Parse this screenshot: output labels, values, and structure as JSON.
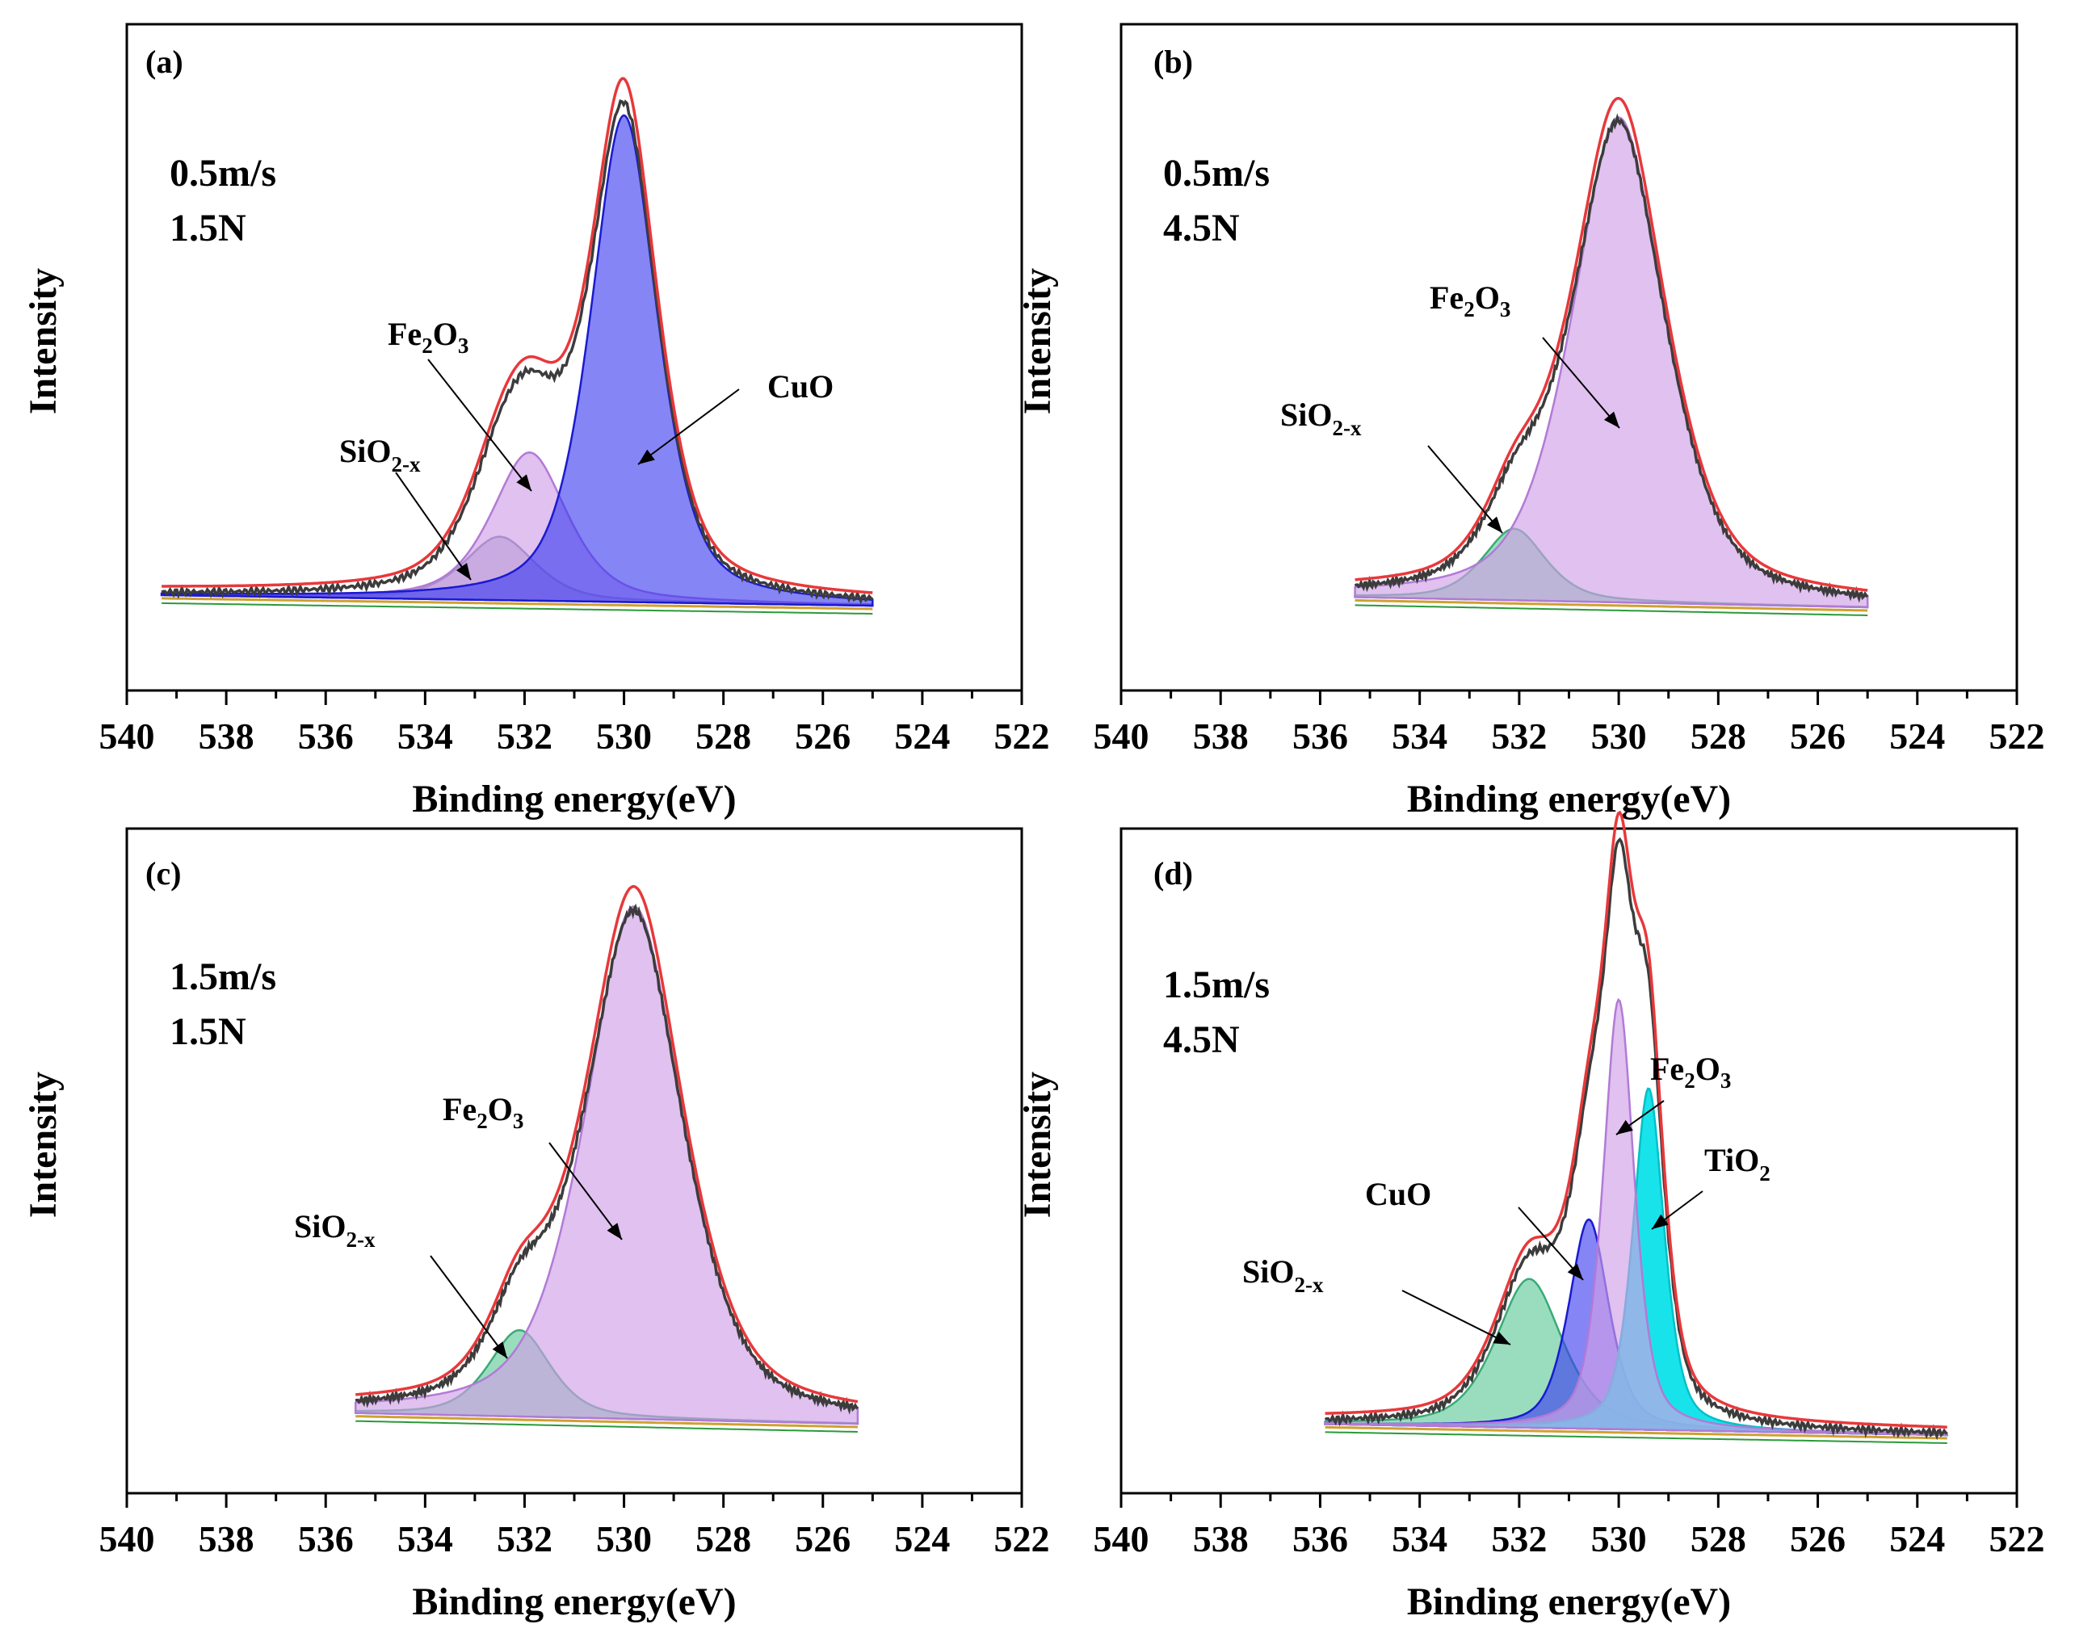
{
  "figure": {
    "panels": [
      {
        "label": "(a)",
        "condition": [
          "0.5m/s",
          "1.5N"
        ],
        "xlabel": "Binding energy(eV)",
        "ylabel": "Intensity"
      },
      {
        "label": "(b)",
        "condition": [
          "0.5m/s",
          "4.5N"
        ],
        "xlabel": "Binding energy(eV)",
        "ylabel": "Intensity"
      },
      {
        "label": "(c)",
        "condition": [
          "1.5m/s",
          "1.5N"
        ],
        "xlabel": "Binding energy(eV)",
        "ylabel": "Intensity"
      },
      {
        "label": "(d)",
        "condition": [
          "1.5m/s",
          "4.5N"
        ],
        "xlabel": "Binding energy(eV)",
        "ylabel": "Intensity"
      }
    ]
  },
  "colors": {
    "fit_envelope": "#e8383b",
    "raw_spectrum": "#3c3c3c",
    "CuO": "#3a3af0",
    "Fe2O3": "#cfa0e6",
    "SiO2-x": "#5cc896",
    "SiO2-x_a": "#8c8cb4",
    "TiO2": "#00e0e8",
    "background": "#d0a030",
    "residual": "#2a9a3a"
  },
  "chart_data": [
    {
      "type": "area",
      "panel": "a",
      "xlim": [
        540,
        522
      ],
      "x_ticks": [
        540,
        538,
        536,
        534,
        532,
        530,
        528,
        526,
        524,
        522
      ],
      "y_ticks": "none",
      "data_range": [
        539.3,
        525.0
      ],
      "components": [
        {
          "name": "CuO",
          "label": "CuO",
          "center": 530.0,
          "height": 0.92,
          "width": 0.75,
          "color_key": "CuO"
        },
        {
          "name": "Fe2O3",
          "label_main": "Fe",
          "label_sub1": "2",
          "label_mid": "O",
          "label_sub2": "3",
          "center": 531.9,
          "height": 0.28,
          "width": 0.85,
          "color_key": "Fe2O3"
        },
        {
          "name": "SiO2-x",
          "label_main": "SiO",
          "label_sub": "2-x",
          "center": 532.5,
          "height": 0.12,
          "width": 0.8,
          "color_key": "SiO2-x_a"
        }
      ],
      "baseline_start": 0.02,
      "baseline_end": 0.0
    },
    {
      "type": "area",
      "panel": "b",
      "xlim": [
        540,
        522
      ],
      "x_ticks": [
        540,
        538,
        536,
        534,
        532,
        530,
        528,
        526,
        524,
        522
      ],
      "y_ticks": "none",
      "data_range": [
        535.3,
        525.0
      ],
      "components": [
        {
          "name": "Fe2O3",
          "label_main": "Fe",
          "label_sub1": "2",
          "label_mid": "O",
          "label_sub2": "3",
          "center": 530.0,
          "height": 0.95,
          "width": 1.05,
          "color_key": "Fe2O3"
        },
        {
          "name": "SiO2-x",
          "label_main": "SiO",
          "label_sub": "2-x",
          "center": 532.1,
          "height": 0.14,
          "width": 0.7,
          "color_key": "SiO2-x"
        }
      ],
      "baseline_start": 0.02,
      "baseline_end": 0.0
    },
    {
      "type": "area",
      "panel": "c",
      "xlim": [
        540,
        522
      ],
      "x_ticks": [
        540,
        538,
        536,
        534,
        532,
        530,
        528,
        526,
        524,
        522
      ],
      "y_ticks": "none",
      "data_range": [
        535.4,
        525.3
      ],
      "components": [
        {
          "name": "Fe2O3",
          "label_main": "Fe",
          "label_sub1": "2",
          "label_mid": "O",
          "label_sub2": "3",
          "center": 529.8,
          "height": 0.95,
          "width": 1.1,
          "color_key": "Fe2O3"
        },
        {
          "name": "SiO2-x",
          "label_main": "SiO",
          "label_sub": "2-x",
          "center": 532.1,
          "height": 0.16,
          "width": 0.7,
          "color_key": "SiO2-x"
        }
      ],
      "baseline_start": 0.02,
      "baseline_end": 0.0
    },
    {
      "type": "area",
      "panel": "d",
      "xlim": [
        540,
        522
      ],
      "x_ticks": [
        540,
        538,
        536,
        534,
        532,
        530,
        528,
        526,
        524,
        522
      ],
      "y_ticks": "none",
      "data_range": [
        535.9,
        523.4
      ],
      "components": [
        {
          "name": "Fe2O3",
          "label_main": "Fe",
          "label_sub1": "2",
          "label_mid": "O",
          "label_sub2": "3",
          "center": 530.0,
          "height": 0.78,
          "width": 0.35,
          "color_key": "Fe2O3"
        },
        {
          "name": "TiO2",
          "label_main": "TiO",
          "label_sub": "2",
          "center": 529.4,
          "height": 0.62,
          "width": 0.35,
          "color_key": "TiO2"
        },
        {
          "name": "CuO",
          "label": "CuO",
          "center": 530.6,
          "height": 0.38,
          "width": 0.45,
          "color_key": "CuO"
        },
        {
          "name": "SiO2-x",
          "label_main": "SiO",
          "label_sub": "2-x",
          "center": 531.8,
          "height": 0.27,
          "width": 0.75,
          "color_key": "SiO2-x"
        }
      ],
      "baseline_start": 0.02,
      "baseline_end": 0.0
    }
  ]
}
